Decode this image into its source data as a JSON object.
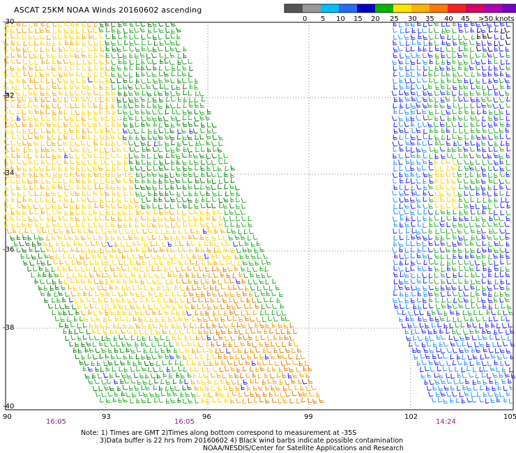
{
  "title": "ASCAT 25KM NOAA Winds 20160602 ascending",
  "colorbar": {
    "labels": [
      "0",
      "5",
      "10",
      "15",
      "20",
      "25",
      "30",
      "35",
      "40",
      "45",
      ">50 knots"
    ],
    "colors": [
      "#555555",
      "#999999",
      "#00bfff",
      "#1e6fff",
      "#0000c8",
      "#00b400",
      "#ffe600",
      "#ffb400",
      "#ff7800",
      "#ff1e1e",
      "#dc0064",
      "#b400b4",
      "#7800c8"
    ]
  },
  "axes": {
    "lat_labels": [
      "-30",
      "-32",
      "-34",
      "-36",
      "-38",
      "-40"
    ],
    "lon_labels": [
      "90",
      "93",
      "96",
      "99",
      "102",
      "105"
    ]
  },
  "times": [
    "16:05",
    "16:05",
    "14:24"
  ],
  "notes": {
    "line1": "Note: 1) Times are GMT 2)Times along bottom correspond to measurement at -35S",
    "line2": "3)Data buffer is 22 hrs from 20160602 4) Black wind barbs indicate possible contamination",
    "line3": "NOAA/NESDIS/Center for Satellite Applications and Research"
  }
}
